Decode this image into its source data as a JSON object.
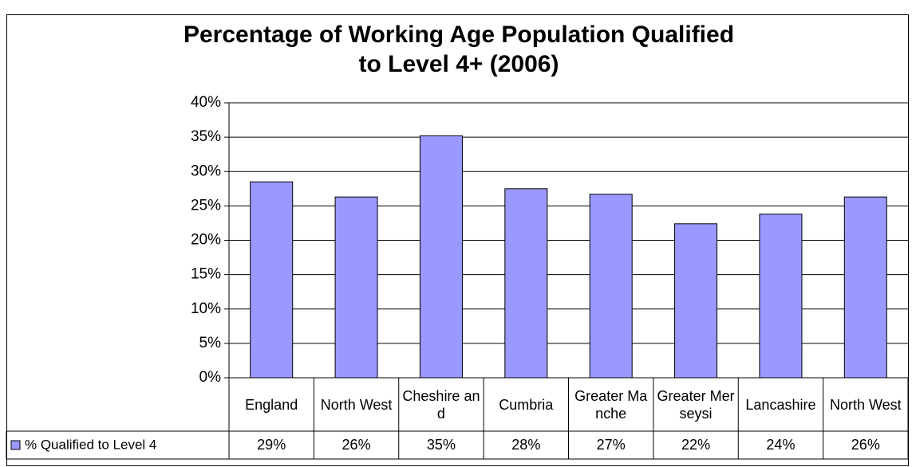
{
  "chart_data": {
    "type": "bar",
    "title": "Percentage of Working Age Population Qualified to Level 4+ (2006)",
    "categories": [
      "England",
      "North West",
      "Cheshire and",
      "Cumbria",
      "Greater Manche",
      "Greater Merseysi",
      "Lancashire",
      "North West"
    ],
    "series": [
      {
        "name": "% Qualified to Level 4",
        "color": "#9999ff",
        "values": [
          28.5,
          26.3,
          35.2,
          27.5,
          26.7,
          22.4,
          23.8,
          26.3
        ],
        "value_labels": [
          "29%",
          "26%",
          "35%",
          "28%",
          "27%",
          "22%",
          "24%",
          "26%"
        ]
      }
    ],
    "ylim": [
      0,
      40
    ],
    "yticks": [
      {
        "value": 0,
        "label": "0%"
      },
      {
        "value": 5,
        "label": "5%"
      },
      {
        "value": 10,
        "label": "10%"
      },
      {
        "value": 15,
        "label": "15%"
      },
      {
        "value": 20,
        "label": "20%"
      },
      {
        "value": 25,
        "label": "25%"
      },
      {
        "value": 30,
        "label": "30%"
      },
      {
        "value": 35,
        "label": "35%"
      },
      {
        "value": 40,
        "label": "40%"
      }
    ],
    "grid": true
  }
}
